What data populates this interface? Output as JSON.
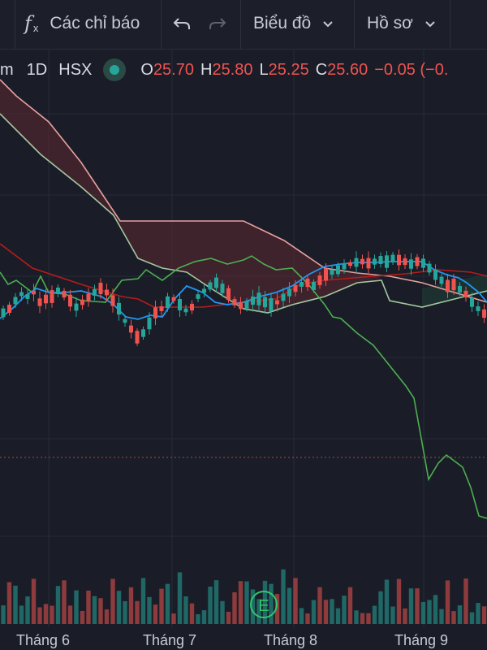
{
  "toolbar": {
    "indicators_label": "Các chỉ báo",
    "chart_menu_label": "Biểu đồ",
    "profile_menu_label": "Hồ sơ"
  },
  "legend": {
    "symbol_fragment": "m",
    "interval": "1D",
    "exchange": "HSX",
    "open_label": "O",
    "open": "25.70",
    "high_label": "H",
    "high": "25.80",
    "low_label": "L",
    "low": "25.25",
    "close_label": "C",
    "close": "25.60",
    "change": "−0.05 (−0.",
    "status_color": "#26a69a"
  },
  "x_axis": {
    "month_6": "Tháng 6",
    "month_7": "Tháng 7",
    "month_8": "Tháng 8",
    "month_9": "Tháng 9"
  },
  "event_marker": "E",
  "colors": {
    "up": "#26a69a",
    "down": "#ef5350",
    "tenkan": "#2196f3",
    "kijun": "#b71c1c",
    "lagging": "#43a047",
    "span_a": "#a5d6a7",
    "span_b": "#ef9a9a"
  }
}
